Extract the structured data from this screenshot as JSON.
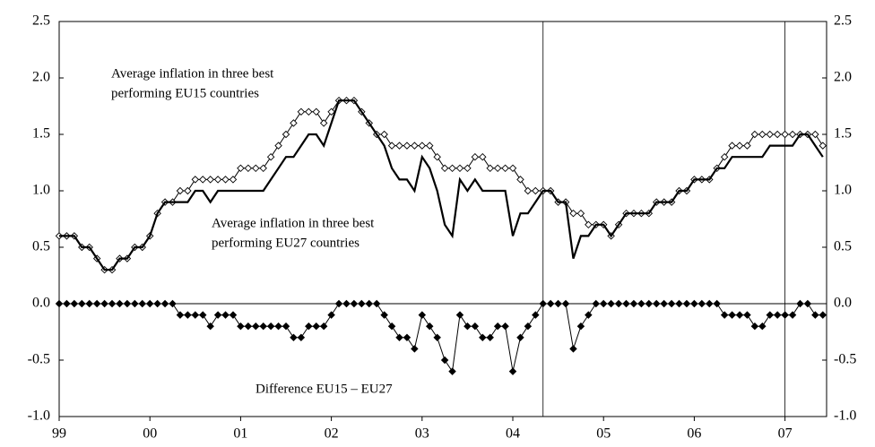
{
  "chart_data": {
    "type": "line",
    "categories": [
      "99",
      null,
      null,
      null,
      null,
      null,
      null,
      null,
      null,
      null,
      null,
      null,
      "00",
      null,
      null,
      null,
      null,
      null,
      null,
      null,
      null,
      null,
      null,
      null,
      "01",
      null,
      null,
      null,
      null,
      null,
      null,
      null,
      null,
      null,
      null,
      null,
      "02",
      null,
      null,
      null,
      null,
      null,
      null,
      null,
      null,
      null,
      null,
      null,
      "03",
      null,
      null,
      null,
      null,
      null,
      null,
      null,
      null,
      null,
      null,
      null,
      "04",
      null,
      null,
      null,
      null,
      null,
      null,
      null,
      null,
      null,
      null,
      null,
      "05",
      null,
      null,
      null,
      null,
      null,
      null,
      null,
      null,
      null,
      null,
      null,
      "06",
      null,
      null,
      null,
      null,
      null,
      null,
      null,
      null,
      null,
      null,
      null,
      "07",
      null,
      null,
      null,
      null,
      null
    ],
    "series": [
      {
        "name": "Average inflation in three best performing EU15 countries",
        "color": "#000000",
        "marker": "hollow-diamond",
        "values": [
          0.6,
          0.6,
          0.6,
          0.5,
          0.5,
          0.4,
          0.3,
          0.3,
          0.4,
          0.4,
          0.5,
          0.5,
          0.6,
          0.8,
          0.9,
          0.9,
          1.0,
          1.0,
          1.1,
          1.1,
          1.1,
          1.1,
          1.1,
          1.1,
          1.2,
          1.2,
          1.2,
          1.2,
          1.3,
          1.4,
          1.5,
          1.6,
          1.7,
          1.7,
          1.7,
          1.6,
          1.7,
          1.8,
          1.8,
          1.8,
          1.7,
          1.6,
          1.5,
          1.5,
          1.4,
          1.4,
          1.4,
          1.4,
          1.4,
          1.4,
          1.3,
          1.2,
          1.2,
          1.2,
          1.2,
          1.3,
          1.3,
          1.2,
          1.2,
          1.2,
          1.2,
          1.1,
          1.0,
          1.0,
          1.0,
          1.0,
          0.9,
          0.9,
          0.8,
          0.8,
          0.7,
          0.7,
          0.7,
          0.6,
          0.7,
          0.8,
          0.8,
          0.8,
          0.8,
          0.9,
          0.9,
          0.9,
          1.0,
          1.0,
          1.1,
          1.1,
          1.1,
          1.2,
          1.3,
          1.4,
          1.4,
          1.4,
          1.5,
          1.5,
          1.5,
          1.5,
          1.5,
          1.5,
          1.5,
          1.5,
          1.5,
          1.4
        ]
      },
      {
        "name": "Average inflation in three best performing EU27 countries",
        "color": "#000000",
        "marker": "none",
        "values": [
          0.6,
          0.6,
          0.6,
          0.5,
          0.5,
          0.4,
          0.3,
          0.3,
          0.4,
          0.4,
          0.5,
          0.5,
          0.6,
          0.8,
          0.9,
          0.9,
          0.9,
          0.9,
          1.0,
          1.0,
          0.9,
          1.0,
          1.0,
          1.0,
          1.0,
          1.0,
          1.0,
          1.0,
          1.1,
          1.2,
          1.3,
          1.3,
          1.4,
          1.5,
          1.5,
          1.4,
          1.6,
          1.8,
          1.8,
          1.8,
          1.7,
          1.6,
          1.5,
          1.4,
          1.2,
          1.1,
          1.1,
          1.0,
          1.3,
          1.2,
          1.0,
          0.7,
          0.6,
          1.1,
          1.0,
          1.1,
          1.0,
          1.0,
          1.0,
          1.0,
          0.6,
          0.8,
          0.8,
          0.9,
          1.0,
          1.0,
          0.9,
          0.9,
          0.4,
          0.6,
          0.6,
          0.7,
          0.7,
          0.6,
          0.7,
          0.8,
          0.8,
          0.8,
          0.8,
          0.9,
          0.9,
          0.9,
          1.0,
          1.0,
          1.1,
          1.1,
          1.1,
          1.2,
          1.2,
          1.3,
          1.3,
          1.3,
          1.3,
          1.3,
          1.4,
          1.4,
          1.4,
          1.4,
          1.5,
          1.5,
          1.4,
          1.3
        ]
      },
      {
        "name": "Difference EU15 – EU27",
        "color": "#000000",
        "marker": "filled-diamond",
        "values": [
          0,
          0,
          0,
          0,
          0,
          0,
          0,
          0,
          0,
          0,
          0,
          0,
          0,
          0,
          0,
          0,
          -0.1,
          -0.1,
          -0.1,
          -0.1,
          -0.2,
          -0.1,
          -0.1,
          -0.1,
          -0.2,
          -0.2,
          -0.2,
          -0.2,
          -0.2,
          -0.2,
          -0.2,
          -0.3,
          -0.3,
          -0.2,
          -0.2,
          -0.2,
          -0.1,
          0,
          0,
          0,
          0,
          0,
          0,
          -0.1,
          -0.2,
          -0.3,
          -0.3,
          -0.4,
          -0.1,
          -0.2,
          -0.3,
          -0.5,
          -0.6,
          -0.1,
          -0.2,
          -0.2,
          -0.3,
          -0.3,
          -0.2,
          -0.2,
          -0.6,
          -0.3,
          -0.2,
          -0.1,
          0,
          0,
          0,
          0,
          -0.4,
          -0.2,
          -0.1,
          0,
          0,
          0,
          0,
          0,
          0,
          0,
          0,
          0,
          0,
          0,
          0,
          0,
          0,
          0,
          0,
          0,
          -0.1,
          -0.1,
          -0.1,
          -0.1,
          -0.2,
          -0.2,
          -0.1,
          -0.1,
          -0.1,
          -0.1,
          0,
          0,
          -0.1,
          -0.1
        ]
      }
    ],
    "annotations": [
      [
        "Average inflation in three best",
        "performing EU15 countries"
      ],
      [
        "Average inflation in three best",
        "performing EU27 countries"
      ],
      [
        "Difference EU15 – EU27"
      ]
    ],
    "vlines": [
      64,
      96
    ],
    "ylim": [
      -1.0,
      2.5
    ],
    "yticks": [
      {
        "value": -1.0,
        "label": "-1.0"
      },
      {
        "value": -0.5,
        "label": "-0.5"
      },
      {
        "value": 0,
        "label": "0.0"
      },
      {
        "value": 0.5,
        "label": "0.5"
      },
      {
        "value": 1.0,
        "label": "1.0"
      },
      {
        "value": 1.5,
        "label": "1.5"
      },
      {
        "value": 2.0,
        "label": "2.0"
      },
      {
        "value": 2.5,
        "label": "2.5"
      }
    ],
    "y2lim": [
      -1.0,
      2.5
    ],
    "y2ticks": [
      {
        "value": -1.0,
        "label": "-1.0"
      },
      {
        "value": -0.5,
        "label": "-0.5"
      },
      {
        "value": 0,
        "label": "0.0"
      },
      {
        "value": 0.5,
        "label": "0.5"
      },
      {
        "value": 1.0,
        "label": "1.0"
      },
      {
        "value": 1.5,
        "label": "1.5"
      },
      {
        "value": 2.0,
        "label": "2.0"
      },
      {
        "value": 2.5,
        "label": "2.5"
      }
    ],
    "grid": false
  }
}
